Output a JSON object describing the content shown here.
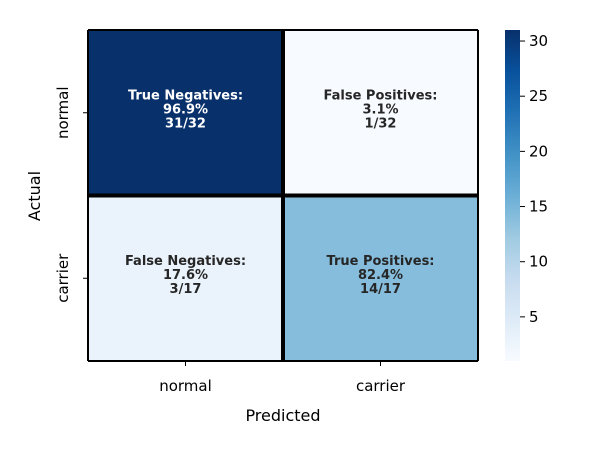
{
  "chart_data": {
    "type": "heatmap",
    "xlabel": "Predicted",
    "ylabel": "Actual",
    "x_categories": [
      "normal",
      "carrier"
    ],
    "y_categories": [
      "normal",
      "carrier"
    ],
    "values": [
      [
        31,
        1
      ],
      [
        3,
        14
      ]
    ],
    "cells": [
      [
        {
          "line1": "True Negatives:",
          "line2": "96.9%",
          "line3": "31/32"
        },
        {
          "line1": "False Positives:",
          "line2": "3.1%",
          "line3": "1/32"
        }
      ],
      [
        {
          "line1": "False Negatives:",
          "line2": "17.6%",
          "line3": "3/17"
        },
        {
          "line1": "True Positives:",
          "line2": "82.4%",
          "line3": "14/17"
        }
      ]
    ],
    "colormap": "Blues",
    "colorbar": {
      "range": [
        1,
        31
      ],
      "ticks": [
        5,
        10,
        15,
        20,
        25,
        30
      ],
      "tick_labels": [
        "5",
        "10",
        "15",
        "20",
        "25",
        "30"
      ]
    }
  }
}
